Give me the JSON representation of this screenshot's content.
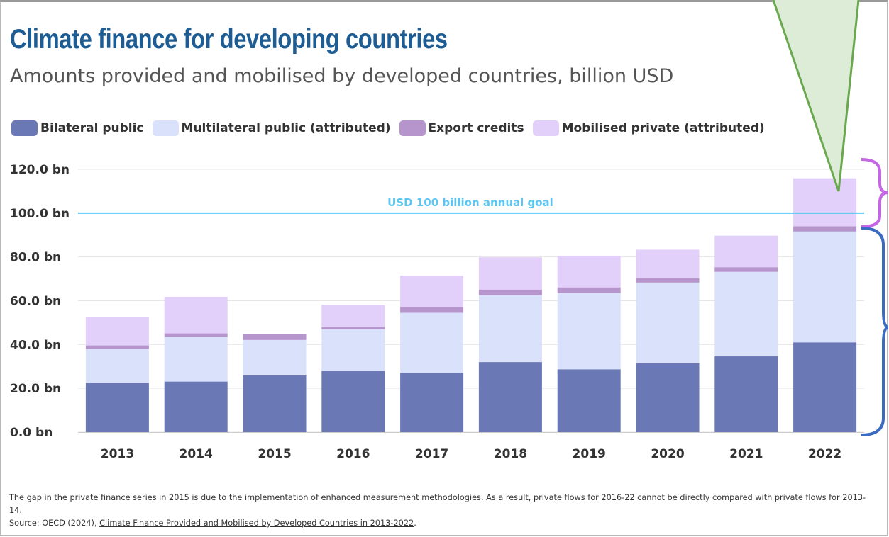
{
  "header": {
    "title": "Climate finance for developing countries",
    "subtitle": "Amounts provided and mobilised by developed countries, billion USD"
  },
  "legend": [
    {
      "label": "Bilateral public",
      "color": "#6b78b6"
    },
    {
      "label": "Multilateral public (attributed)",
      "color": "#dae2fb"
    },
    {
      "label": "Export credits",
      "color": "#b694cc"
    },
    {
      "label": "Mobilised private (attributed)",
      "color": "#e2cffa"
    }
  ],
  "chart_data": {
    "type": "bar",
    "stacked": true,
    "categories": [
      "2013",
      "2014",
      "2015",
      "2016",
      "2017",
      "2018",
      "2019",
      "2020",
      "2021",
      "2022"
    ],
    "series": [
      {
        "name": "Bilateral public",
        "color": "#6b78b6",
        "values": [
          22.5,
          23.1,
          25.9,
          28.0,
          27.0,
          32.0,
          28.7,
          31.4,
          34.6,
          41.0
        ]
      },
      {
        "name": "Multilateral public (attributed)",
        "color": "#dae2fb",
        "values": [
          15.5,
          20.4,
          16.2,
          19.0,
          27.5,
          30.5,
          34.8,
          36.9,
          38.6,
          50.6
        ]
      },
      {
        "name": "Export credits",
        "color": "#b694cc",
        "values": [
          1.6,
          1.6,
          2.6,
          1.0,
          2.6,
          2.6,
          2.6,
          1.9,
          2.1,
          2.4
        ]
      },
      {
        "name": "Mobilised private (attributed)",
        "color": "#e2cffa",
        "values": [
          12.8,
          16.7,
          0,
          10.1,
          14.4,
          14.7,
          14.4,
          13.1,
          14.4,
          21.9
        ]
      }
    ],
    "y_ticks": [
      "0.0 bn",
      "20.0 bn",
      "40.0 bn",
      "60.0 bn",
      "80.0 bn",
      "100.0 bn",
      "120.0 bn"
    ],
    "ylim": [
      0,
      120
    ],
    "goal": {
      "value": 100,
      "label": "USD 100 billion annual goal",
      "color": "#5bc6f2"
    },
    "grid": true,
    "legend_position": "top"
  },
  "annotations": {
    "pointer_color": "#6aa84f",
    "pointer_fill": "#dcecd6",
    "upper_brace_color": "#c566e6",
    "lower_brace_color": "#3b6cc2"
  },
  "footnote": {
    "line1": "The gap in the private finance series in 2015 is due to the implementation of enhanced measurement methodologies. As a result, private flows for 2016-22 cannot be directly compared with private flows for 2013-14.",
    "source_prefix": "Source: OECD (2024), ",
    "source_link": "Climate Finance Provided and Mobilised by Developed Countries in 2013-2022",
    "source_suffix": "."
  }
}
